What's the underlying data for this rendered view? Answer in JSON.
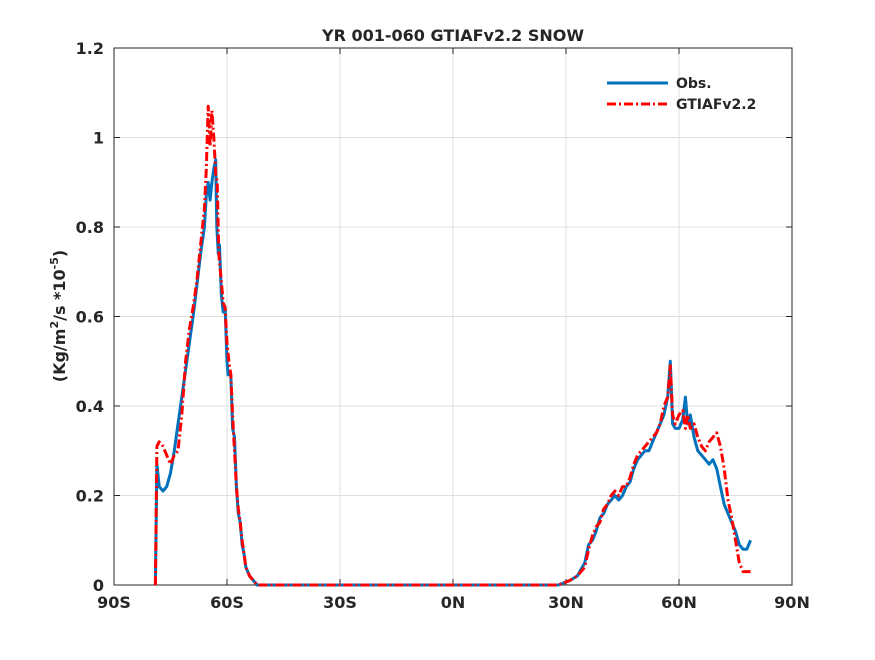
{
  "chart_data": {
    "type": "line",
    "title": "YR 001-060 GTIAFv2.2 SNOW",
    "xlabel": "",
    "ylabel_parts": [
      "(Kg/m",
      "2",
      "/s *10",
      "-5",
      ")"
    ],
    "xlim": [
      -90,
      90
    ],
    "ylim": [
      0,
      1.2
    ],
    "x_ticks": [
      -90,
      -60,
      -30,
      0,
      30,
      60,
      90
    ],
    "x_tick_labels": [
      "90S",
      "60S",
      "30S",
      "0N",
      "30N",
      "60N",
      "90N"
    ],
    "y_ticks": [
      0,
      0.2,
      0.4,
      0.6,
      0.8,
      1,
      1.2
    ],
    "y_tick_labels": [
      "0",
      "0.2",
      "0.4",
      "0.6",
      "0.8",
      "1",
      "1.2"
    ],
    "grid": true,
    "legend_placement": "top-right",
    "series": [
      {
        "name": "Obs.",
        "color": "#0072BD",
        "style": "solid",
        "points": [
          [
            -79,
            0.0
          ],
          [
            -78.6,
            0.27
          ],
          [
            -78,
            0.22
          ],
          [
            -77,
            0.21
          ],
          [
            -76,
            0.22
          ],
          [
            -75,
            0.25
          ],
          [
            -74,
            0.3
          ],
          [
            -73,
            0.36
          ],
          [
            -72,
            0.42
          ],
          [
            -71,
            0.48
          ],
          [
            -70,
            0.54
          ],
          [
            -69,
            0.6
          ],
          [
            -68,
            0.67
          ],
          [
            -67,
            0.74
          ],
          [
            -66,
            0.8
          ],
          [
            -65.5,
            0.87
          ],
          [
            -65,
            0.9
          ],
          [
            -64.5,
            0.86
          ],
          [
            -64,
            0.9
          ],
          [
            -63.5,
            0.93
          ],
          [
            -63,
            0.95
          ],
          [
            -62.7,
            0.8
          ],
          [
            -62.3,
            0.74
          ],
          [
            -62,
            0.76
          ],
          [
            -61.5,
            0.65
          ],
          [
            -61,
            0.61
          ],
          [
            -60.5,
            0.62
          ],
          [
            -60,
            0.5
          ],
          [
            -59.7,
            0.47
          ],
          [
            -59,
            0.47
          ],
          [
            -58.5,
            0.35
          ],
          [
            -58,
            0.33
          ],
          [
            -57.5,
            0.22
          ],
          [
            -57,
            0.16
          ],
          [
            -56.5,
            0.14
          ],
          [
            -56,
            0.09
          ],
          [
            -55.5,
            0.07
          ],
          [
            -55,
            0.04
          ],
          [
            -54,
            0.02
          ],
          [
            -53,
            0.01
          ],
          [
            -52,
            0.0
          ],
          [
            -30,
            0.0
          ],
          [
            0,
            0.0
          ],
          [
            25,
            0.0
          ],
          [
            28,
            0.0
          ],
          [
            31,
            0.01
          ],
          [
            33,
            0.02
          ],
          [
            35,
            0.05
          ],
          [
            36,
            0.09
          ],
          [
            37,
            0.1
          ],
          [
            38,
            0.12
          ],
          [
            39,
            0.15
          ],
          [
            40,
            0.16
          ],
          [
            41,
            0.18
          ],
          [
            42,
            0.19
          ],
          [
            43,
            0.2
          ],
          [
            44,
            0.19
          ],
          [
            45,
            0.2
          ],
          [
            46,
            0.22
          ],
          [
            47,
            0.23
          ],
          [
            48,
            0.26
          ],
          [
            49,
            0.28
          ],
          [
            50,
            0.29
          ],
          [
            51,
            0.3
          ],
          [
            52,
            0.3
          ],
          [
            53,
            0.32
          ],
          [
            54,
            0.34
          ],
          [
            55,
            0.36
          ],
          [
            56,
            0.38
          ],
          [
            57,
            0.42
          ],
          [
            57.7,
            0.5
          ],
          [
            58.3,
            0.36
          ],
          [
            59,
            0.35
          ],
          [
            60,
            0.35
          ],
          [
            61,
            0.37
          ],
          [
            61.7,
            0.42
          ],
          [
            62.3,
            0.36
          ],
          [
            63,
            0.38
          ],
          [
            64,
            0.33
          ],
          [
            65,
            0.3
          ],
          [
            66,
            0.29
          ],
          [
            67,
            0.28
          ],
          [
            68,
            0.27
          ],
          [
            69,
            0.28
          ],
          [
            70,
            0.26
          ],
          [
            71,
            0.22
          ],
          [
            72,
            0.18
          ],
          [
            73,
            0.16
          ],
          [
            74,
            0.14
          ],
          [
            75,
            0.12
          ],
          [
            76,
            0.09
          ],
          [
            77,
            0.08
          ],
          [
            78,
            0.08
          ],
          [
            79,
            0.1
          ]
        ]
      },
      {
        "name": "GTIAFv2.2",
        "color": "#FF0000",
        "style": "dashdot",
        "points": [
          [
            -79,
            0.0
          ],
          [
            -78.6,
            0.31
          ],
          [
            -78,
            0.32
          ],
          [
            -77,
            0.31
          ],
          [
            -76,
            0.29
          ],
          [
            -75,
            0.27
          ],
          [
            -74,
            0.29
          ],
          [
            -73,
            0.3
          ],
          [
            -72,
            0.38
          ],
          [
            -71,
            0.5
          ],
          [
            -70,
            0.57
          ],
          [
            -69,
            0.62
          ],
          [
            -68,
            0.68
          ],
          [
            -67,
            0.76
          ],
          [
            -66,
            0.84
          ],
          [
            -65.5,
            0.93
          ],
          [
            -65,
            1.07
          ],
          [
            -64.5,
            0.98
          ],
          [
            -64,
            1.06
          ],
          [
            -63.5,
            1.0
          ],
          [
            -63,
            0.92
          ],
          [
            -62.6,
            0.9
          ],
          [
            -62.2,
            0.75
          ],
          [
            -62,
            0.72
          ],
          [
            -61.5,
            0.68
          ],
          [
            -61,
            0.63
          ],
          [
            -60.5,
            0.62
          ],
          [
            -60,
            0.54
          ],
          [
            -59.5,
            0.5
          ],
          [
            -59,
            0.47
          ],
          [
            -58.5,
            0.38
          ],
          [
            -58,
            0.3
          ],
          [
            -57.5,
            0.22
          ],
          [
            -57,
            0.17
          ],
          [
            -56.5,
            0.14
          ],
          [
            -56,
            0.1
          ],
          [
            -55.5,
            0.07
          ],
          [
            -55,
            0.04
          ],
          [
            -54,
            0.02
          ],
          [
            -53,
            0.01
          ],
          [
            -52,
            0.0
          ],
          [
            -30,
            0.0
          ],
          [
            0,
            0.0
          ],
          [
            25,
            0.0
          ],
          [
            28,
            0.0
          ],
          [
            31,
            0.01
          ],
          [
            33,
            0.02
          ],
          [
            35,
            0.04
          ],
          [
            36,
            0.08
          ],
          [
            37,
            0.11
          ],
          [
            38,
            0.13
          ],
          [
            39,
            0.14
          ],
          [
            40,
            0.17
          ],
          [
            41,
            0.18
          ],
          [
            42,
            0.2
          ],
          [
            43,
            0.21
          ],
          [
            44,
            0.2
          ],
          [
            45,
            0.22
          ],
          [
            46,
            0.22
          ],
          [
            47,
            0.24
          ],
          [
            48,
            0.27
          ],
          [
            49,
            0.29
          ],
          [
            50,
            0.3
          ],
          [
            51,
            0.31
          ],
          [
            52,
            0.32
          ],
          [
            53,
            0.33
          ],
          [
            54,
            0.34
          ],
          [
            55,
            0.36
          ],
          [
            56,
            0.4
          ],
          [
            57,
            0.42
          ],
          [
            57.7,
            0.49
          ],
          [
            58.3,
            0.38
          ],
          [
            59,
            0.36
          ],
          [
            60,
            0.38
          ],
          [
            61,
            0.39
          ],
          [
            61.7,
            0.35
          ],
          [
            62.3,
            0.38
          ],
          [
            63,
            0.35
          ],
          [
            64,
            0.36
          ],
          [
            65,
            0.33
          ],
          [
            66,
            0.31
          ],
          [
            67,
            0.3
          ],
          [
            68,
            0.32
          ],
          [
            69,
            0.33
          ],
          [
            70,
            0.34
          ],
          [
            71,
            0.31
          ],
          [
            72,
            0.26
          ],
          [
            73,
            0.19
          ],
          [
            74,
            0.15
          ],
          [
            75,
            0.1
          ],
          [
            76,
            0.05
          ],
          [
            77,
            0.03
          ],
          [
            78,
            0.03
          ],
          [
            79,
            0.03
          ]
        ]
      }
    ]
  }
}
